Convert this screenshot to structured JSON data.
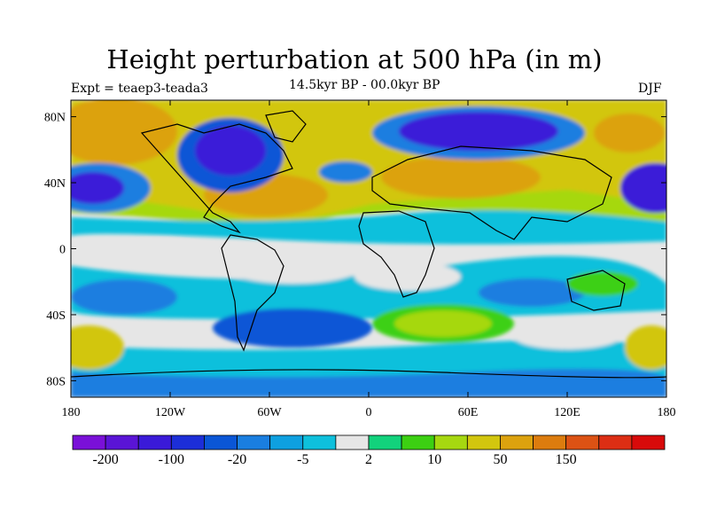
{
  "title": "Height perturbation at 500 hPa (in m)",
  "left_label": "Expt = teaep3-teada3",
  "center_label": "14.5kyr BP - 00.0kyr BP",
  "right_label": "DJF",
  "map": {
    "lon_range": [
      -180,
      180
    ],
    "lat_range": [
      -90,
      90
    ],
    "projection": "cylindrical-equidistant",
    "lat_ticks": [
      {
        "value": 80,
        "label": "80N"
      },
      {
        "value": 40,
        "label": "40N"
      },
      {
        "value": 0,
        "label": "0"
      },
      {
        "value": -40,
        "label": "40S"
      },
      {
        "value": -80,
        "label": "80S"
      }
    ],
    "lon_ticks": [
      {
        "value": -180,
        "label": "180"
      },
      {
        "value": -120,
        "label": "120W"
      },
      {
        "value": -60,
        "label": "60W"
      },
      {
        "value": 0,
        "label": "0"
      },
      {
        "value": 60,
        "label": "60E"
      },
      {
        "value": 120,
        "label": "120E"
      },
      {
        "value": 180,
        "label": "180"
      }
    ],
    "ocean_color": "#e6e6e6"
  },
  "colorbar": {
    "colors": [
      "#7a10d8",
      "#5a14d6",
      "#3a1ad8",
      "#1c2ed8",
      "#0a56d6",
      "#1a7ee0",
      "#0ea0e0",
      "#0ec0dc",
      "#e6e6e6",
      "#12d27c",
      "#3cd012",
      "#a6d810",
      "#d2c60e",
      "#dca20e",
      "#dc7c0e",
      "#dc5214",
      "#dc2e14",
      "#d80a0a"
    ],
    "labels": [
      {
        "after_index": 0,
        "text": "-200"
      },
      {
        "after_index": 2,
        "text": "-100"
      },
      {
        "after_index": 4,
        "text": "-20"
      },
      {
        "after_index": 6,
        "text": "-5"
      },
      {
        "after_index": 8,
        "text": "2"
      },
      {
        "after_index": 10,
        "text": "10"
      },
      {
        "after_index": 12,
        "text": "50"
      },
      {
        "after_index": 14,
        "text": "150"
      }
    ]
  }
}
